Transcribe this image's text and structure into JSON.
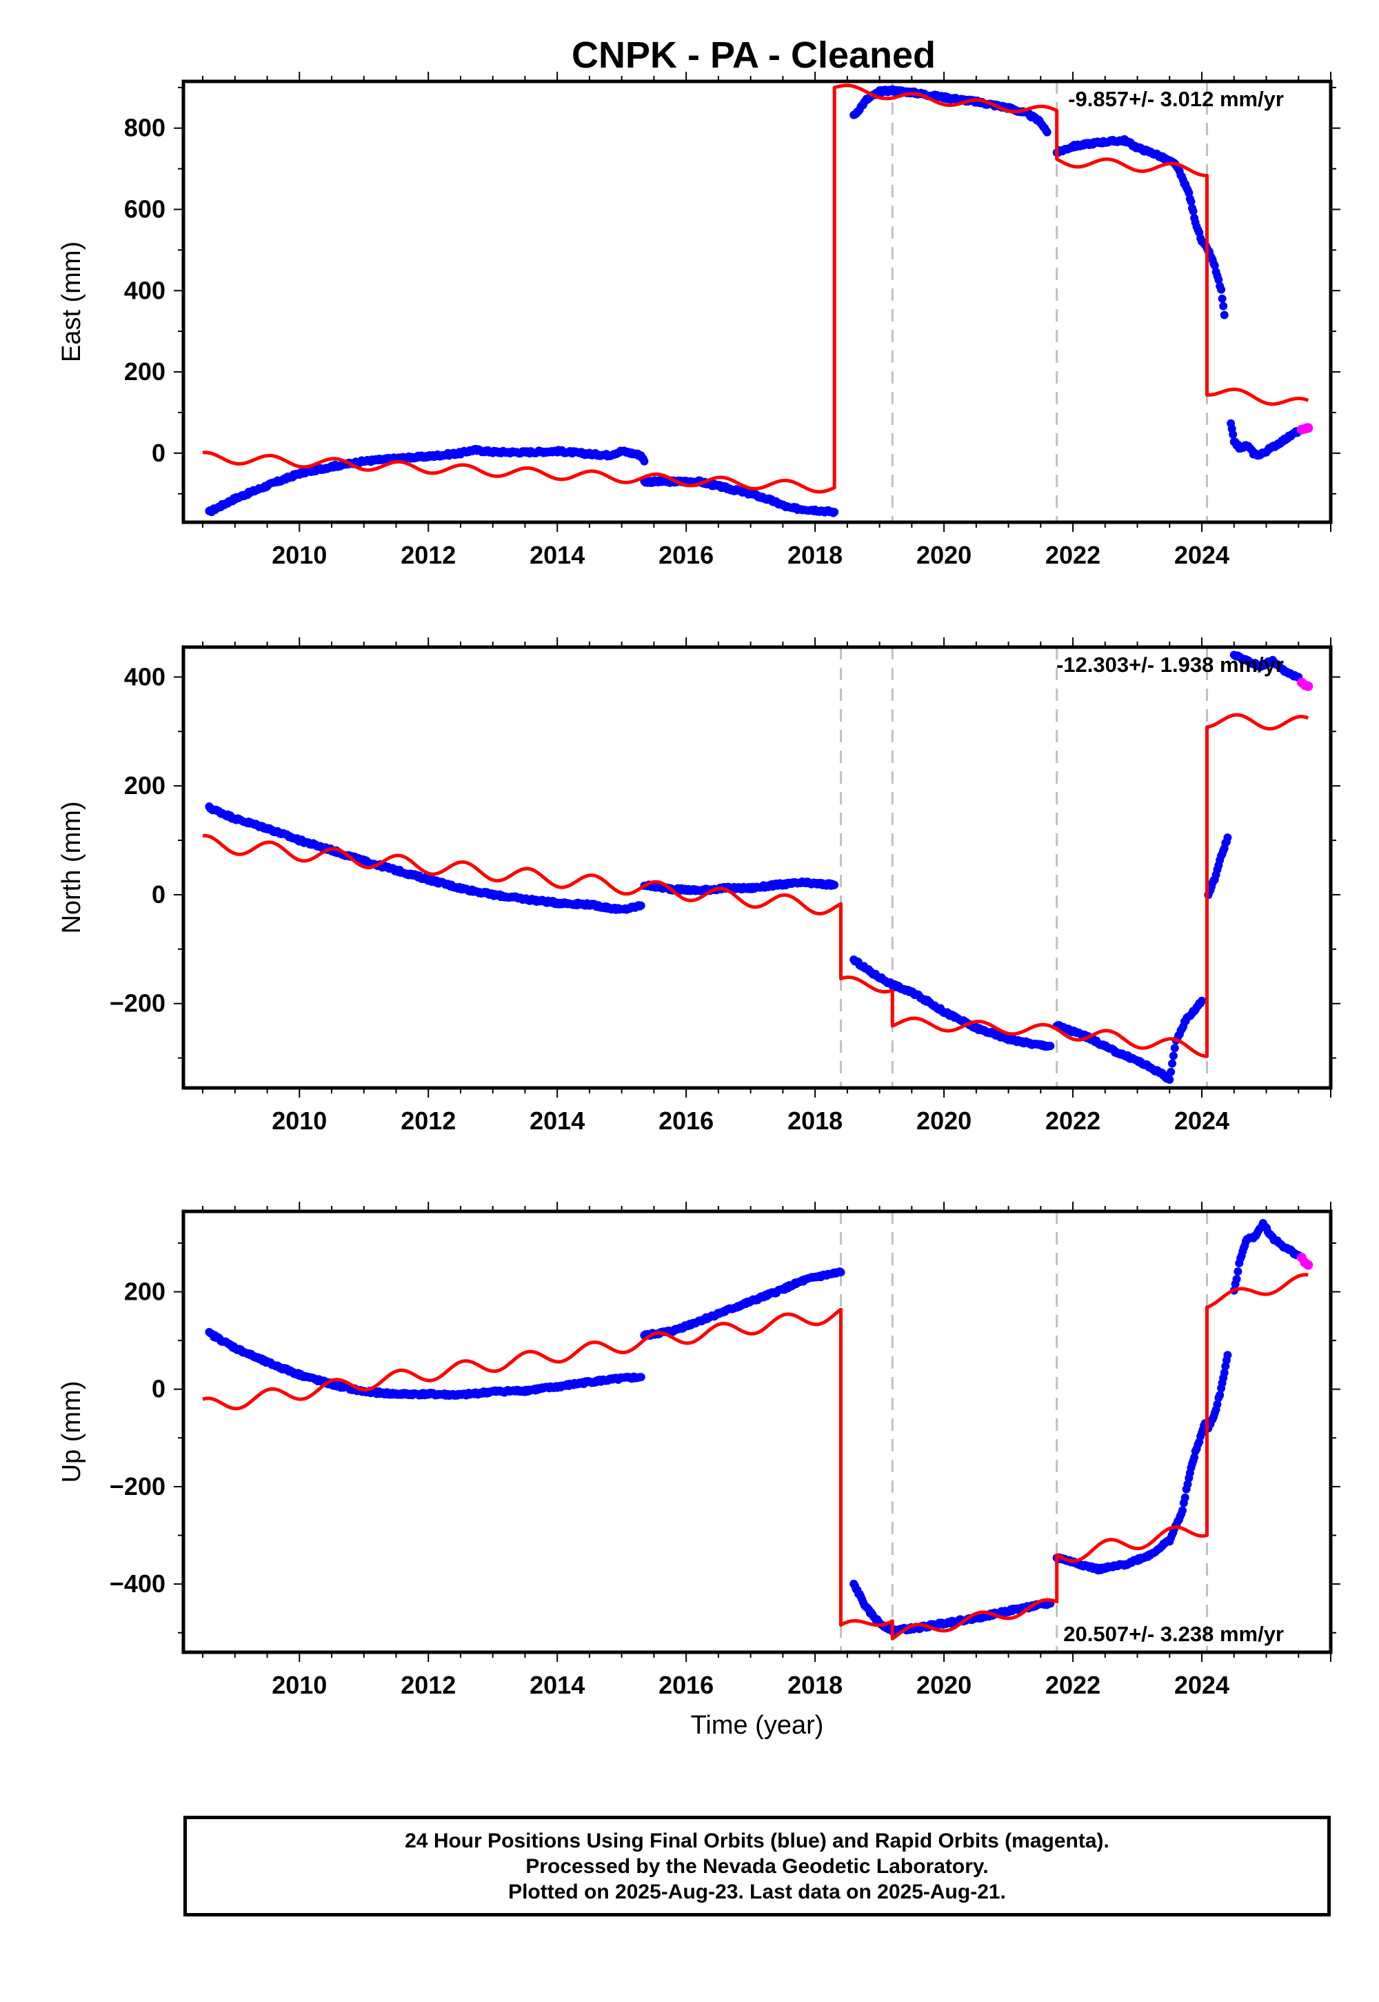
{
  "title": "CNPK  - PA - Cleaned",
  "colors": {
    "final_orbits": "#0000ff",
    "rapid_orbits": "#ff00ff",
    "model": "#ff0000",
    "offset_lines": "#c0c0c0"
  },
  "caption": {
    "line1": "24 Hour Positions Using Final Orbits (blue) and Rapid Orbits (magenta).",
    "line2": "Processed by the Nevada Geodetic Laboratory.",
    "line3": "Plotted on 2025-Aug-23. Last data on 2025-Aug-21."
  },
  "chart_data": [
    {
      "type": "scatter",
      "panel": "east",
      "ylabel": "East (mm)",
      "xlabel": "",
      "rate_label": "-9.857+/- 3.012 mm/yr",
      "xlim": [
        2008.2,
        2026.0
      ],
      "ylim": [
        -170,
        915
      ],
      "x_ticks": [
        2010,
        2012,
        2014,
        2016,
        2018,
        2020,
        2022,
        2024
      ],
      "y_ticks": [
        0,
        200,
        400,
        600,
        800
      ],
      "offset_lines": [
        2019.2,
        2021.75,
        2024.08
      ],
      "data_series": [
        {
          "segment": 1,
          "points": [
            [
              2008.6,
              -145
            ],
            [
              2009.0,
              -112
            ],
            [
              2009.5,
              -80
            ],
            [
              2010.0,
              -50
            ],
            [
              2010.5,
              -33
            ],
            [
              2011.0,
              -20
            ],
            [
              2011.5,
              -13
            ],
            [
              2012.0,
              -8
            ],
            [
              2012.5,
              0
            ],
            [
              2012.7,
              8
            ],
            [
              2013.0,
              3
            ],
            [
              2013.5,
              2
            ],
            [
              2014.0,
              5
            ],
            [
              2014.5,
              -2
            ],
            [
              2014.8,
              -5
            ],
            [
              2015.0,
              5
            ],
            [
              2015.3,
              -5
            ],
            [
              2015.35,
              -20
            ]
          ]
        },
        {
          "segment": 2,
          "points": [
            [
              2015.35,
              -70
            ],
            [
              2015.8,
              -70
            ],
            [
              2016.2,
              -70
            ],
            [
              2016.6,
              -85
            ],
            [
              2017.0,
              -100
            ],
            [
              2017.3,
              -115
            ],
            [
              2017.6,
              -135
            ],
            [
              2018.0,
              -140
            ],
            [
              2018.3,
              -145
            ]
          ]
        },
        {
          "segment": 3,
          "points": [
            [
              2018.6,
              830
            ],
            [
              2018.8,
              870
            ],
            [
              2019.0,
              890
            ],
            [
              2019.2,
              893
            ],
            [
              2019.5,
              888
            ],
            [
              2020.0,
              876
            ],
            [
              2020.5,
              865
            ],
            [
              2021.0,
              850
            ],
            [
              2021.3,
              835
            ],
            [
              2021.5,
              815
            ],
            [
              2021.6,
              790
            ]
          ]
        },
        {
          "segment": 4,
          "points": [
            [
              2021.75,
              740
            ],
            [
              2022.0,
              755
            ],
            [
              2022.4,
              765
            ],
            [
              2022.8,
              770
            ],
            [
              2023.0,
              752
            ],
            [
              2023.3,
              735
            ],
            [
              2023.6,
              710
            ],
            [
              2023.8,
              640
            ],
            [
              2023.9,
              570
            ],
            [
              2024.0,
              520
            ],
            [
              2024.1,
              500
            ],
            [
              2024.2,
              460
            ],
            [
              2024.3,
              400
            ],
            [
              2024.35,
              340
            ]
          ]
        },
        {
          "segment": 5,
          "points": [
            [
              2024.45,
              70
            ],
            [
              2024.5,
              30
            ],
            [
              2024.6,
              10
            ],
            [
              2024.7,
              20
            ],
            [
              2024.8,
              0
            ],
            [
              2024.9,
              -5
            ],
            [
              2025.0,
              5
            ],
            [
              2025.1,
              15
            ],
            [
              2025.2,
              25
            ],
            [
              2025.3,
              35
            ],
            [
              2025.4,
              45
            ],
            [
              2025.5,
              55
            ]
          ]
        }
      ],
      "rapid_points": [
        [
          2025.55,
          58
        ],
        [
          2025.6,
          60
        ],
        [
          2025.63,
          62
        ],
        [
          2025.65,
          62
        ]
      ],
      "model_segments": [
        {
          "x_start": 2008.5,
          "x_end": 2018.3,
          "start": -10,
          "end": -85,
          "amplitude": 12
        },
        {
          "x_start": 2018.3,
          "x_end": 2019.2,
          "start": 900,
          "end": 880,
          "amplitude": 10
        },
        {
          "x_start": 2019.2,
          "x_end": 2021.75,
          "start": 880,
          "end": 840,
          "amplitude": 10
        },
        {
          "x_start": 2021.75,
          "x_end": 2024.08,
          "start": 720,
          "end": 695,
          "amplitude": 12
        },
        {
          "x_start": 2024.08,
          "x_end": 2025.65,
          "start": 155,
          "end": 120,
          "amplitude": 12
        }
      ]
    },
    {
      "type": "scatter",
      "panel": "north",
      "ylabel": "North (mm)",
      "xlabel": "",
      "rate_label": "-12.303+/- 1.938 mm/yr",
      "xlim": [
        2008.2,
        2026.0
      ],
      "ylim": [
        -355,
        455
      ],
      "x_ticks": [
        2010,
        2012,
        2014,
        2016,
        2018,
        2020,
        2022,
        2024
      ],
      "y_ticks": [
        -200,
        0,
        200,
        400
      ],
      "offset_lines": [
        2018.4,
        2019.2,
        2021.75,
        2024.08
      ],
      "data_series": [
        {
          "segment": 1,
          "points": [
            [
              2008.6,
              160
            ],
            [
              2009.0,
              140
            ],
            [
              2009.5,
              122
            ],
            [
              2010.0,
              100
            ],
            [
              2010.5,
              82
            ],
            [
              2011.0,
              62
            ],
            [
              2011.5,
              45
            ],
            [
              2012.0,
              28
            ],
            [
              2012.5,
              12
            ],
            [
              2013.0,
              0
            ],
            [
              2013.5,
              -8
            ],
            [
              2014.0,
              -15
            ],
            [
              2014.5,
              -18
            ],
            [
              2015.0,
              -28
            ],
            [
              2015.3,
              -20
            ]
          ]
        },
        {
          "segment": 2,
          "points": [
            [
              2015.35,
              18
            ],
            [
              2015.8,
              10
            ],
            [
              2016.2,
              8
            ],
            [
              2016.6,
              12
            ],
            [
              2017.0,
              12
            ],
            [
              2017.4,
              18
            ],
            [
              2017.8,
              22
            ],
            [
              2018.3,
              18
            ]
          ]
        },
        {
          "segment": 3,
          "points": [
            [
              2018.6,
              -120
            ],
            [
              2018.9,
              -145
            ],
            [
              2019.2,
              -165
            ],
            [
              2019.6,
              -185
            ],
            [
              2020.0,
              -215
            ],
            [
              2020.5,
              -245
            ],
            [
              2021.0,
              -265
            ],
            [
              2021.4,
              -275
            ],
            [
              2021.65,
              -278
            ]
          ]
        },
        {
          "segment": 4,
          "points": [
            [
              2021.75,
              -240
            ],
            [
              2022.2,
              -260
            ],
            [
              2022.6,
              -285
            ],
            [
              2023.0,
              -305
            ],
            [
              2023.4,
              -330
            ],
            [
              2023.5,
              -340
            ],
            [
              2023.6,
              -270
            ],
            [
              2023.75,
              -230
            ],
            [
              2023.9,
              -210
            ],
            [
              2024.0,
              -195
            ]
          ]
        },
        {
          "segment": 5,
          "points": [
            [
              2024.1,
              0
            ],
            [
              2024.2,
              30
            ],
            [
              2024.3,
              70
            ],
            [
              2024.4,
              105
            ]
          ]
        },
        {
          "segment": 6,
          "points": [
            [
              2024.5,
              440
            ],
            [
              2024.7,
              430
            ],
            [
              2024.9,
              420
            ],
            [
              2025.1,
              430
            ],
            [
              2025.3,
              410
            ],
            [
              2025.5,
              400
            ]
          ]
        }
      ],
      "rapid_points": [
        [
          2025.55,
          390
        ],
        [
          2025.6,
          385
        ],
        [
          2025.65,
          383
        ]
      ],
      "model_segments": [
        {
          "x_start": 2008.5,
          "x_end": 2018.4,
          "start": 95,
          "end": -25,
          "amplitude": 14
        },
        {
          "x_start": 2018.4,
          "x_end": 2019.2,
          "start": -160,
          "end": -170,
          "amplitude": 10
        },
        {
          "x_start": 2019.2,
          "x_end": 2021.75,
          "start": -235,
          "end": -250,
          "amplitude": 10
        },
        {
          "x_start": 2021.75,
          "x_end": 2024.08,
          "start": -250,
          "end": -285,
          "amplitude": 12
        },
        {
          "x_start": 2024.08,
          "x_end": 2025.65,
          "start": 320,
          "end": 315,
          "amplitude": 12
        }
      ]
    },
    {
      "type": "scatter",
      "panel": "up",
      "ylabel": "Up (mm)",
      "xlabel": "Time (year)",
      "rate_label": "20.507+/- 3.238 mm/yr",
      "xlim": [
        2008.2,
        2026.0
      ],
      "ylim": [
        -540,
        365
      ],
      "x_ticks": [
        2010,
        2012,
        2014,
        2016,
        2018,
        2020,
        2022,
        2024
      ],
      "y_ticks": [
        -400,
        -200,
        0,
        200
      ],
      "offset_lines": [
        2018.4,
        2019.2,
        2021.75,
        2024.08
      ],
      "data_series": [
        {
          "segment": 1,
          "points": [
            [
              2008.6,
              115
            ],
            [
              2009.0,
              85
            ],
            [
              2009.5,
              55
            ],
            [
              2010.0,
              30
            ],
            [
              2010.5,
              10
            ],
            [
              2011.0,
              -5
            ],
            [
              2011.5,
              -10
            ],
            [
              2012.0,
              -10
            ],
            [
              2012.5,
              -12
            ],
            [
              2013.0,
              -5
            ],
            [
              2013.5,
              -3
            ],
            [
              2014.0,
              5
            ],
            [
              2014.5,
              15
            ],
            [
              2015.0,
              22
            ],
            [
              2015.3,
              25
            ]
          ]
        },
        {
          "segment": 2,
          "points": [
            [
              2015.35,
              110
            ],
            [
              2015.8,
              120
            ],
            [
              2016.2,
              140
            ],
            [
              2016.6,
              160
            ],
            [
              2017.0,
              180
            ],
            [
              2017.4,
              200
            ],
            [
              2017.8,
              222
            ],
            [
              2018.0,
              230
            ],
            [
              2018.4,
              240
            ]
          ]
        },
        {
          "segment": 3,
          "points": [
            [
              2018.6,
              -400
            ],
            [
              2018.8,
              -450
            ],
            [
              2019.0,
              -480
            ],
            [
              2019.2,
              -495
            ],
            [
              2019.6,
              -490
            ],
            [
              2020.0,
              -480
            ],
            [
              2020.5,
              -470
            ],
            [
              2021.0,
              -455
            ],
            [
              2021.4,
              -445
            ],
            [
              2021.65,
              -440
            ]
          ]
        },
        {
          "segment": 4,
          "points": [
            [
              2021.75,
              -345
            ],
            [
              2022.0,
              -355
            ],
            [
              2022.4,
              -370
            ],
            [
              2022.8,
              -360
            ],
            [
              2023.2,
              -340
            ],
            [
              2023.5,
              -310
            ],
            [
              2023.7,
              -250
            ],
            [
              2023.8,
              -180
            ],
            [
              2023.9,
              -130
            ],
            [
              2024.0,
              -90
            ],
            [
              2024.05,
              -70
            ]
          ]
        },
        {
          "segment": 5,
          "points": [
            [
              2024.1,
              -80
            ],
            [
              2024.2,
              -50
            ],
            [
              2024.3,
              0
            ],
            [
              2024.4,
              70
            ]
          ]
        },
        {
          "segment": 6,
          "points": [
            [
              2024.5,
              200
            ],
            [
              2024.6,
              270
            ],
            [
              2024.7,
              310
            ],
            [
              2024.8,
              310
            ],
            [
              2024.95,
              340
            ],
            [
              2025.1,
              310
            ],
            [
              2025.3,
              290
            ],
            [
              2025.5,
              275
            ]
          ]
        }
      ],
      "rapid_points": [
        [
          2025.55,
          270
        ],
        [
          2025.6,
          260
        ],
        [
          2025.65,
          255
        ]
      ],
      "model_segments": [
        {
          "x_start": 2008.5,
          "x_end": 2018.4,
          "start": -35,
          "end": 155,
          "amplitude": 15
        },
        {
          "x_start": 2018.4,
          "x_end": 2019.2,
          "start": -490,
          "end": -470,
          "amplitude": 10
        },
        {
          "x_start": 2019.2,
          "x_end": 2021.75,
          "start": -505,
          "end": -440,
          "amplitude": 12
        },
        {
          "x_start": 2021.75,
          "x_end": 2024.08,
          "start": -345,
          "end": -285,
          "amplitude": 15
        },
        {
          "x_start": 2024.08,
          "x_end": 2025.65,
          "start": 180,
          "end": 225,
          "amplitude": 12
        }
      ]
    }
  ]
}
